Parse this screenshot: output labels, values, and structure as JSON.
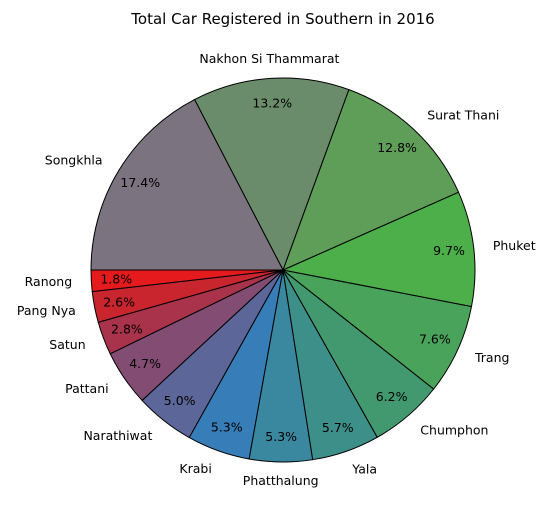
{
  "chart_data": {
    "type": "pie",
    "title": "Total Car Registered in Southern in 2016",
    "start_angle_deg": 180,
    "direction": "clockwise-on-screen",
    "slices": [
      {
        "label": "Ranong",
        "pct": "1.8%",
        "value": 1.8,
        "color": "#e41a1c"
      },
      {
        "label": "Pang Nya",
        "pct": "2.6%",
        "value": 2.6,
        "color": "#c9252e"
      },
      {
        "label": "Satun",
        "pct": "2.8%",
        "value": 2.8,
        "color": "#a9334a"
      },
      {
        "label": "Pattani",
        "pct": "4.7%",
        "value": 4.7,
        "color": "#834d73"
      },
      {
        "label": "Narathiwat",
        "pct": "5.0%",
        "value": 5.0,
        "color": "#5c6698"
      },
      {
        "label": "Krabi",
        "pct": "5.3%",
        "value": 5.3,
        "color": "#377eb8"
      },
      {
        "label": "Phatthalung",
        "pct": "5.3%",
        "value": 5.3,
        "color": "#3a87a0"
      },
      {
        "label": "Yala",
        "pct": "5.7%",
        "value": 5.7,
        "color": "#3d9089"
      },
      {
        "label": "Chumphon",
        "pct": "6.2%",
        "value": 6.2,
        "color": "#42996f"
      },
      {
        "label": "Trang",
        "pct": "7.6%",
        "value": 7.6,
        "color": "#49a35a"
      },
      {
        "label": "Phuket",
        "pct": "9.7%",
        "value": 9.7,
        "color": "#4daf4a"
      },
      {
        "label": "Surat Thani",
        "pct": "12.8%",
        "value": 12.8,
        "color": "#5f9e58"
      },
      {
        "label": "Nakhon Si Thammarat",
        "pct": "13.2%",
        "value": 13.2,
        "color": "#6b8c6b"
      },
      {
        "label": "Songkhla",
        "pct": "17.4%",
        "value": 17.4,
        "color": "#7b7480"
      }
    ]
  }
}
